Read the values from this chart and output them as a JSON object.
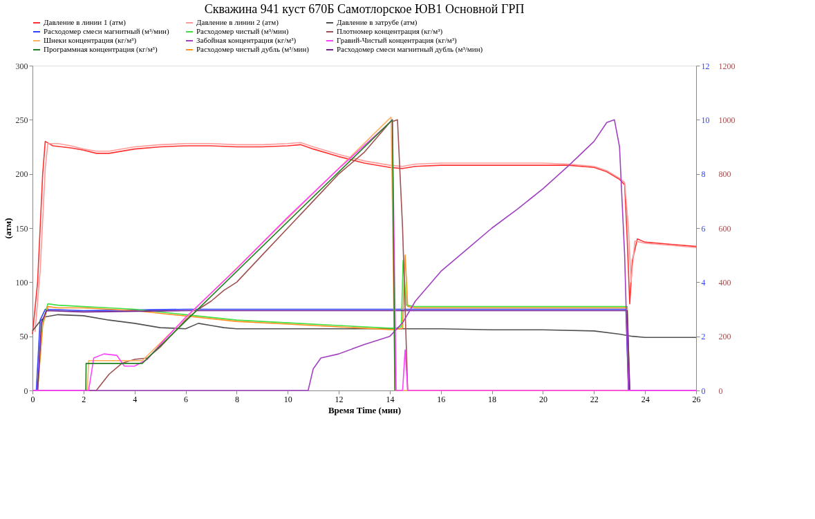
{
  "chart_data": {
    "type": "line",
    "title": "Скважина 941 куст 670Б Самотлорское ЮВ1 Основной ГРП",
    "xlabel": "Время Time (мин)",
    "ylabel": "(атм)",
    "xlim": [
      0,
      26
    ],
    "xticks": [
      0,
      2,
      4,
      6,
      8,
      10,
      12,
      14,
      16,
      18,
      20,
      22,
      24,
      26
    ],
    "ylim": [
      0,
      300
    ],
    "yticks": [
      0,
      50,
      100,
      150,
      200,
      250,
      300
    ],
    "y2lim": [
      0,
      12
    ],
    "y2ticks": [
      0,
      2,
      4,
      6,
      8,
      10,
      12
    ],
    "y3lim": [
      0,
      1200
    ],
    "y3ticks": [
      0,
      200,
      400,
      600,
      800,
      1000,
      1200
    ],
    "grid": false,
    "legend": "top",
    "marker": "none",
    "line_style": "solid",
    "series": [
      {
        "name": "Давление в линии 1 (атм)",
        "color": "#ff3030",
        "axis": "y",
        "x": [
          0,
          0.2,
          0.4,
          0.5,
          0.8,
          1.5,
          2,
          2.5,
          3,
          4,
          5,
          6,
          7,
          8,
          9,
          10,
          10.5,
          11,
          12,
          13,
          14,
          14.5,
          15,
          16,
          18,
          20,
          21,
          22,
          22.5,
          23,
          23.2,
          23.3,
          23.4,
          23.5,
          23.7,
          24,
          25,
          26
        ],
        "values": [
          52,
          100,
          200,
          230,
          226,
          224,
          222,
          219,
          219,
          223,
          225,
          226,
          226,
          225,
          225,
          226,
          227,
          223,
          216,
          210,
          206,
          205,
          207,
          208,
          208,
          208,
          208,
          206,
          202,
          195,
          190,
          140,
          80,
          120,
          140,
          137,
          135,
          133
        ]
      },
      {
        "name": "Давление в линии 2 (атм)",
        "color": "#ff9a9a",
        "axis": "y",
        "x": [
          0.1,
          0.3,
          0.5,
          0.6,
          1,
          1.5,
          2,
          2.5,
          3,
          4,
          5,
          6,
          7,
          8,
          9,
          10,
          10.5,
          11,
          12,
          13,
          14,
          14.5,
          15,
          16,
          18,
          20,
          21,
          22,
          22.5,
          23,
          23.2,
          23.35,
          23.45,
          23.6,
          24,
          25,
          26
        ],
        "values": [
          54,
          110,
          205,
          228,
          228,
          226,
          223,
          221,
          221,
          225,
          227,
          228,
          228,
          227,
          227,
          228,
          229,
          225,
          218,
          212,
          208,
          207,
          209,
          210,
          210,
          210,
          209,
          207,
          203,
          196,
          192,
          150,
          100,
          138,
          136,
          134,
          132
        ]
      },
      {
        "name": "Давление в затрубе (атм)",
        "color": "#505050",
        "axis": "y",
        "x": [
          0,
          0.3,
          0.5,
          1,
          2,
          3,
          4,
          5,
          6,
          6.5,
          7,
          7.5,
          8,
          10,
          12,
          14,
          16,
          18,
          20,
          22,
          23,
          23.5,
          24,
          26
        ],
        "values": [
          55,
          64,
          68,
          70,
          69,
          65,
          62,
          58,
          57,
          62,
          60,
          58,
          57,
          57,
          57,
          57,
          57,
          56,
          56,
          55,
          52,
          50,
          49,
          49
        ]
      },
      {
        "name": "Расходомер смеси магнитный (м³/мин)",
        "color": "#3040ff",
        "axis": "y2",
        "x": [
          0,
          0.15,
          0.3,
          0.5,
          2,
          6,
          10,
          14,
          18,
          22,
          23.25,
          23.35,
          26
        ],
        "values": [
          0,
          0,
          2.6,
          3.0,
          2.95,
          3.0,
          3.0,
          3.0,
          3.0,
          3.0,
          3.0,
          0,
          0
        ]
      },
      {
        "name": "Расходомер чистый (м³/мин)",
        "color": "#40e040",
        "axis": "y2",
        "x": [
          0,
          0.2,
          0.4,
          0.6,
          1,
          2,
          3,
          4,
          6,
          8,
          10,
          12,
          14,
          14.2,
          14.45,
          14.52,
          14.65,
          15,
          23.3,
          23.4,
          26
        ],
        "values": [
          0,
          0,
          2.5,
          3.2,
          3.15,
          3.1,
          3.05,
          3.0,
          2.8,
          2.6,
          2.5,
          2.4,
          2.3,
          2.3,
          2.35,
          4.8,
          3.15,
          3.1,
          3.1,
          0,
          0
        ]
      },
      {
        "name": "Плотномер концентрация (кг/м³)",
        "color": "#a05050",
        "axis": "y3",
        "x": [
          0,
          2.5,
          3,
          3.5,
          4,
          4.5,
          5,
          5.5,
          6,
          6.5,
          7,
          7.5,
          8,
          9,
          10,
          11,
          12,
          13,
          14,
          14.3,
          14.5,
          14.7,
          26
        ],
        "values": [
          0,
          0,
          60,
          100,
          115,
          120,
          160,
          210,
          260,
          300,
          330,
          370,
          400,
          500,
          600,
          700,
          800,
          880,
          990,
          1000,
          600,
          0,
          0
        ]
      },
      {
        "name": "Шнеки концентрация (кг/м³)",
        "color": "#ffb060",
        "axis": "y3",
        "x": [
          0,
          2.15,
          2.2,
          4.3,
          14.05,
          14.2,
          26
        ],
        "values": [
          0,
          0,
          110,
          110,
          1010,
          0,
          0
        ]
      },
      {
        "name": "Забойная концентрация (кг/м³)",
        "color": "#a040c0",
        "axis": "y3",
        "x": [
          0,
          10.8,
          11,
          11.3,
          12,
          13,
          14,
          14.5,
          15,
          16,
          17,
          18,
          19,
          20,
          21,
          22,
          22.5,
          22.8,
          23,
          23.2,
          23.35,
          26
        ],
        "values": [
          0,
          0,
          80,
          120,
          135,
          170,
          200,
          250,
          330,
          440,
          520,
          600,
          670,
          745,
          830,
          920,
          990,
          1000,
          900,
          500,
          0,
          0
        ]
      },
      {
        "name": "Гравий-Чистый концентрация (кг/м³)",
        "color": "#ff40ff",
        "axis": "y3",
        "x": [
          0,
          2.2,
          2.4,
          2.8,
          3.3,
          3.6,
          4,
          4.5,
          5,
          6,
          8,
          10,
          12,
          14,
          14.1,
          14.25,
          14.5,
          14.6,
          14.7,
          26
        ],
        "values": [
          0,
          0,
          120,
          135,
          130,
          90,
          90,
          115,
          170,
          270,
          450,
          640,
          820,
          990,
          1000,
          0,
          0,
          150,
          0,
          0
        ]
      },
      {
        "name": "Программная концентрация (кг/м³)",
        "color": "#208020",
        "axis": "y3",
        "x": [
          2.09,
          2.1,
          4.3,
          14.1,
          14.2
        ],
        "values": [
          0,
          100,
          100,
          1000,
          0
        ]
      },
      {
        "name": "Расходомер чистый дубль (м³/мин)",
        "color": "#ff9020",
        "axis": "y2",
        "x": [
          0,
          0.2,
          0.4,
          0.6,
          1,
          2,
          3,
          4,
          6,
          8,
          10,
          12,
          14,
          14.2,
          14.5,
          14.6,
          14.7,
          15,
          23.3,
          23.4,
          26
        ],
        "values": [
          0,
          0,
          2.4,
          3.1,
          3.05,
          3.05,
          3.0,
          2.95,
          2.75,
          2.55,
          2.45,
          2.35,
          2.25,
          2.25,
          2.3,
          5.0,
          3.1,
          3.05,
          3.05,
          0,
          0
        ]
      },
      {
        "name": "Расходомер смеси магнитный дубль (м³/мин)",
        "color": "#702090",
        "axis": "y2",
        "x": [
          0,
          0.2,
          0.35,
          0.55,
          2,
          6,
          10,
          14,
          18,
          22,
          23.3,
          23.4,
          26
        ],
        "values": [
          0,
          0,
          2.5,
          2.95,
          2.9,
          2.95,
          2.95,
          2.95,
          2.95,
          2.95,
          2.95,
          0,
          0
        ]
      }
    ]
  }
}
